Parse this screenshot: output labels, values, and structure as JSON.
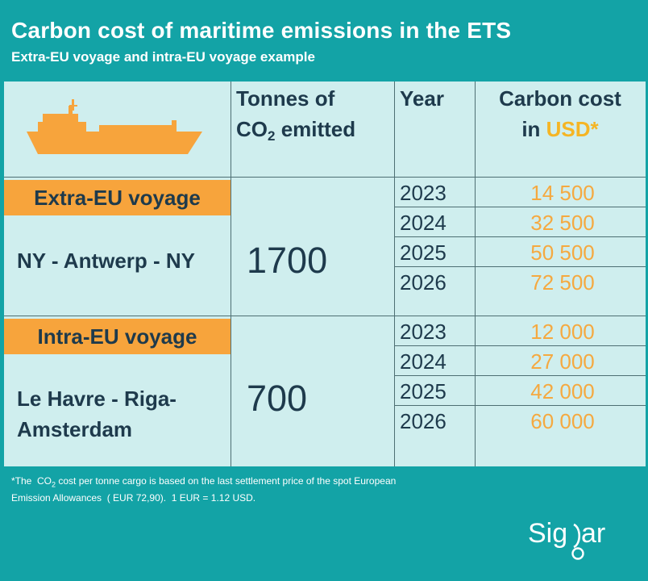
{
  "title": "Carbon cost of maritime emissions in the ETS",
  "subtitle": "Extra-EU  voyage and intra-EU  voyage example",
  "colors": {
    "background": "#13A3A6",
    "table": "#CFEEEE",
    "banner": "#F7A43C",
    "cost": "#F5A940",
    "text": "#1E3A4C"
  },
  "header": {
    "icon": "ship-icon",
    "tonnes_line1": "Tonnes of",
    "tonnes_co": "CO",
    "tonnes_sub": "2",
    "tonnes_rest": " emitted",
    "year": "Year",
    "cost_line1": "Carbon cost",
    "cost_in": "in ",
    "cost_usd": "USD*"
  },
  "sections": [
    {
      "banner": "Extra-EU voyage",
      "route_line1": "NY - Antwerp - NY",
      "route_line2": "",
      "tonnes": "1700",
      "rows": [
        {
          "year": "2023",
          "cost": "14 500"
        },
        {
          "year": "2024",
          "cost": "32 500"
        },
        {
          "year": "2025",
          "cost": "50 500"
        },
        {
          "year": "2026",
          "cost": "72 500"
        }
      ]
    },
    {
      "banner": "Intra-EU voyage",
      "route_line1": "Le Havre - Riga-",
      "route_line2": "Amsterdam",
      "tonnes": "700",
      "rows": [
        {
          "year": "2023",
          "cost": "12 000"
        },
        {
          "year": "2024",
          "cost": "27 000"
        },
        {
          "year": "2025",
          "cost": "42 000"
        },
        {
          "year": "2026",
          "cost": "60 000"
        }
      ]
    }
  ],
  "footnote": {
    "part1": "*The  CO",
    "sub": "2",
    "part2": " cost per tonne cargo is based on the last settlement price of the spot European  Emission Allowances  ( EUR 72,90).  1 EUR = 1.12 USD."
  },
  "logo": {
    "icon": "sigmar-logo",
    "text": "Sigmar"
  }
}
